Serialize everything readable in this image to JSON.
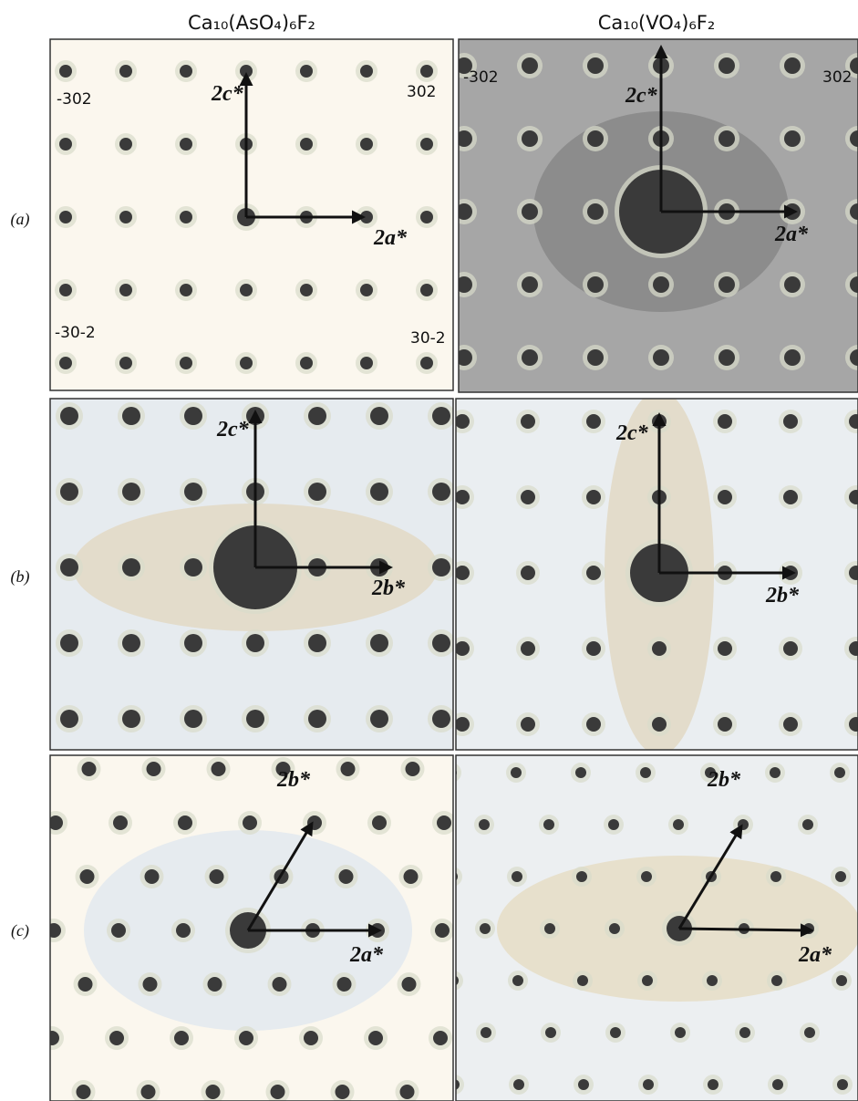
{
  "columns": [
    {
      "title": "Ca₁₀(AsO₄)₆F₂"
    },
    {
      "title": "Ca₁₀(VO₄)₆F₂"
    }
  ],
  "rows": [
    {
      "label": "(a)",
      "panels": [
        {
          "arrows": [
            "2c*",
            "2a*"
          ],
          "reflections": [
            "-302",
            "302",
            "-30-2",
            "30-2"
          ]
        },
        {
          "arrows": [
            "2c*",
            "2a*"
          ],
          "reflections": [
            "-302",
            "302"
          ]
        }
      ]
    },
    {
      "label": "(b)",
      "panels": [
        {
          "arrows": [
            "2c*",
            "2b*"
          ],
          "reflections": []
        },
        {
          "arrows": [
            "2c*",
            "2b*"
          ],
          "reflections": []
        }
      ]
    },
    {
      "label": "(c)",
      "panels": [
        {
          "arrows": [
            "2b*",
            "2a*"
          ],
          "reflections": []
        },
        {
          "arrows": [
            "2b*",
            "2a*"
          ],
          "reflections": []
        }
      ]
    }
  ]
}
